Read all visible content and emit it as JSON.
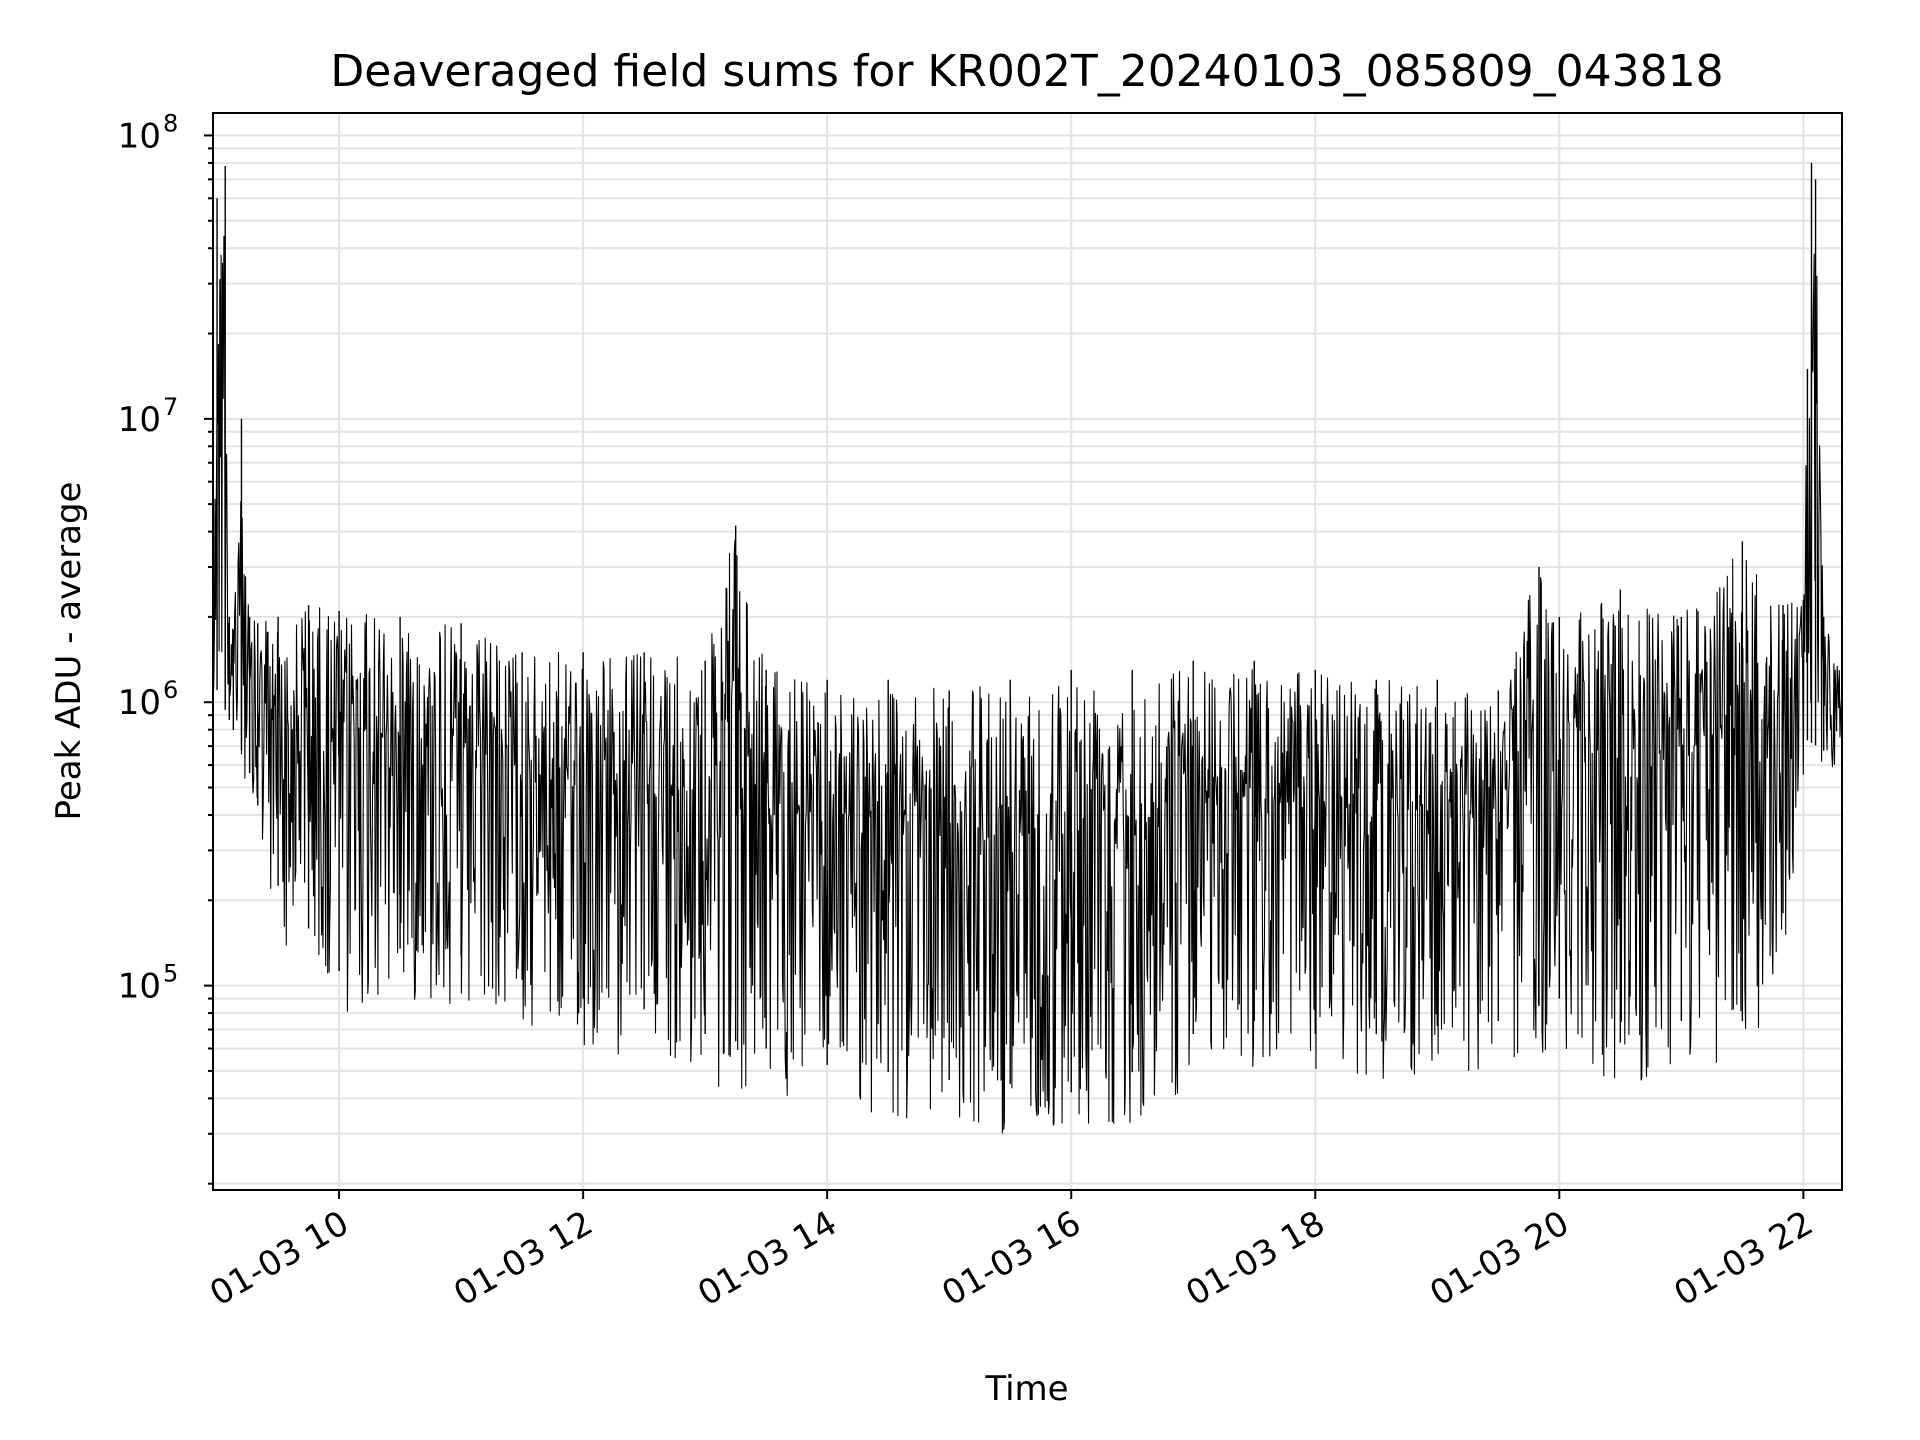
{
  "chart_data": {
    "type": "line",
    "title": "Deaveraged field sums for KR002T_20240103_085809_043818",
    "xlabel": "Time",
    "ylabel": "Peak ADU - average",
    "yscale": "log",
    "xlim": [
      "01-03 08:58",
      "01-03 22:19"
    ],
    "ylim": [
      19000,
      120000000
    ],
    "grid": true,
    "line_color": "#000000",
    "x_ticks": [
      {
        "value": "01-03 10:00",
        "label": "01-03 10"
      },
      {
        "value": "01-03 12:00",
        "label": "01-03 12"
      },
      {
        "value": "01-03 14:00",
        "label": "01-03 14"
      },
      {
        "value": "01-03 16:00",
        "label": "01-03 16"
      },
      {
        "value": "01-03 18:00",
        "label": "01-03 18"
      },
      {
        "value": "01-03 20:00",
        "label": "01-03 20"
      },
      {
        "value": "01-03 22:00",
        "label": "01-03 22"
      }
    ],
    "y_ticks": [
      {
        "value": 100000,
        "base": "10",
        "exp": "5"
      },
      {
        "value": 1000000,
        "base": "10",
        "exp": "6"
      },
      {
        "value": 10000000,
        "base": "10",
        "exp": "7"
      },
      {
        "value": 100000000,
        "base": "10",
        "exp": "8"
      }
    ],
    "series": [
      {
        "type": "upper_envelope",
        "x": [
          "01-03 08:58",
          "01-03 09:00",
          "01-03 09:04",
          "01-03 09:06",
          "01-03 09:08",
          "01-03 09:12",
          "01-03 09:16",
          "01-03 09:20",
          "01-03 09:30",
          "01-03 09:45",
          "01-03 10:00",
          "01-03 10:30",
          "01-03 11:00",
          "01-03 11:30",
          "01-03 12:00",
          "01-03 12:30",
          "01-03 13:00",
          "01-03 13:15",
          "01-03 13:30",
          "01-03 14:00",
          "01-03 14:30",
          "01-03 15:00",
          "01-03 15:30",
          "01-03 16:00",
          "01-03 16:30",
          "01-03 17:00",
          "01-03 17:30",
          "01-03 18:00",
          "01-03 18:30",
          "01-03 19:00",
          "01-03 19:30",
          "01-03 19:50",
          "01-03 20:00",
          "01-03 20:30",
          "01-03 21:00",
          "01-03 21:30",
          "01-03 21:50",
          "01-03 22:00",
          "01-03 22:02",
          "01-03 22:04",
          "01-03 22:06",
          "01-03 22:10",
          "01-03 22:19"
        ],
        "y": [
          2500000,
          60000000,
          78000000,
          2000000,
          1800000,
          10000000,
          2000000,
          1900000,
          2000000,
          2200000,
          2100000,
          2000000,
          1900000,
          1500000,
          1500000,
          1500000,
          1400000,
          4200000,
          1300000,
          1200000,
          1200000,
          1100000,
          1200000,
          1300000,
          1300000,
          1400000,
          1400000,
          1300000,
          1200000,
          1200000,
          1100000,
          3000000,
          2000000,
          2500000,
          2000000,
          3700000,
          2200000,
          2300000,
          15000000,
          80000000,
          70000000,
          2000000,
          1200000
        ]
      },
      {
        "type": "lower_envelope",
        "x": [
          "01-03 08:58",
          "01-03 09:15",
          "01-03 09:30",
          "01-03 10:00",
          "01-03 10:30",
          "01-03 11:00",
          "01-03 11:30",
          "01-03 12:00",
          "01-03 12:30",
          "01-03 13:00",
          "01-03 13:30",
          "01-03 14:00",
          "01-03 14:30",
          "01-03 15:00",
          "01-03 15:30",
          "01-03 16:00",
          "01-03 16:30",
          "01-03 17:00",
          "01-03 17:30",
          "01-03 18:00",
          "01-03 18:30",
          "01-03 19:00",
          "01-03 19:30",
          "01-03 20:00",
          "01-03 20:30",
          "01-03 21:00",
          "01-03 21:30",
          "01-03 21:50",
          "01-03 22:00",
          "01-03 22:10",
          "01-03 22:19"
        ],
        "y": [
          800000,
          400000,
          150000,
          75000,
          90000,
          85000,
          70000,
          60000,
          55000,
          45000,
          40000,
          35000,
          33000,
          31000,
          30000,
          28000,
          33000,
          45000,
          50000,
          45000,
          45000,
          48000,
          50000,
          60000,
          42000,
          50000,
          50000,
          120000,
          500000,
          450000,
          700000
        ]
      }
    ]
  }
}
